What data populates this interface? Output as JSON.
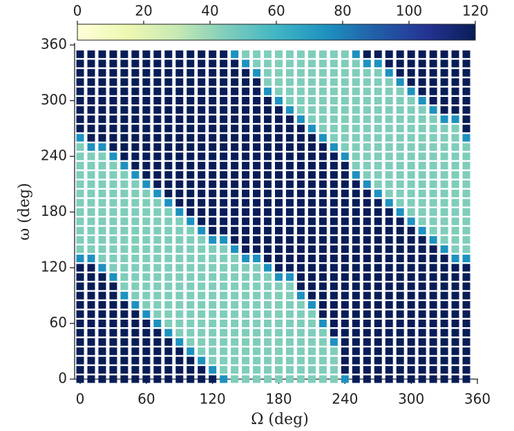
{
  "chart_data": {
    "type": "heatmap",
    "xlabel": "Ω (deg)",
    "ylabel": "ω (deg)",
    "x": [
      0,
      10,
      20,
      30,
      40,
      50,
      60,
      70,
      80,
      90,
      100,
      110,
      120,
      130,
      140,
      150,
      160,
      170,
      180,
      190,
      200,
      210,
      220,
      230,
      240,
      250,
      260,
      270,
      280,
      290,
      300,
      310,
      320,
      330,
      340,
      350
    ],
    "y": [
      0,
      10,
      20,
      30,
      40,
      50,
      60,
      70,
      80,
      90,
      100,
      110,
      120,
      130,
      140,
      150,
      160,
      170,
      180,
      190,
      200,
      210,
      220,
      230,
      240,
      250,
      260,
      270,
      280,
      290,
      300,
      310,
      320,
      330,
      340,
      350
    ],
    "xlim": [
      0,
      360
    ],
    "ylim": [
      0,
      360
    ],
    "xticks": [
      0,
      60,
      120,
      180,
      240,
      300,
      360
    ],
    "yticks": [
      0,
      60,
      120,
      180,
      240,
      300,
      360
    ],
    "zlim": [
      0,
      120
    ],
    "zticks": [
      0,
      20,
      40,
      60,
      80,
      100,
      120
    ],
    "colorscale": [
      "#ffffd9",
      "#edf8b1",
      "#c7e9b4",
      "#7fcdbb",
      "#41b6c4",
      "#1d91c0",
      "#225ea8",
      "#253494",
      "#081d58"
    ],
    "z": [
      [
        120,
        120,
        120,
        120,
        120,
        120,
        120,
        120,
        120,
        120,
        120,
        120,
        120,
        75,
        45,
        45,
        45,
        45,
        45,
        45,
        45,
        45,
        45,
        45,
        75,
        120,
        120,
        120,
        120,
        120,
        120,
        120,
        120,
        120,
        120,
        120
      ],
      [
        120,
        120,
        120,
        120,
        120,
        120,
        120,
        120,
        120,
        120,
        120,
        120,
        75,
        45,
        45,
        45,
        45,
        45,
        45,
        45,
        45,
        45,
        45,
        45,
        120,
        120,
        120,
        120,
        120,
        120,
        120,
        120,
        120,
        120,
        120,
        120
      ],
      [
        120,
        120,
        120,
        120,
        120,
        120,
        120,
        120,
        120,
        120,
        120,
        75,
        45,
        45,
        45,
        45,
        45,
        45,
        45,
        45,
        45,
        45,
        45,
        45,
        120,
        120,
        120,
        120,
        120,
        120,
        120,
        120,
        120,
        120,
        120,
        120
      ],
      [
        120,
        120,
        120,
        120,
        120,
        120,
        120,
        120,
        120,
        120,
        75,
        45,
        45,
        45,
        45,
        45,
        45,
        45,
        45,
        45,
        45,
        45,
        45,
        45,
        120,
        120,
        120,
        120,
        120,
        120,
        120,
        120,
        120,
        120,
        120,
        120
      ],
      [
        120,
        120,
        120,
        120,
        120,
        120,
        120,
        120,
        120,
        75,
        45,
        45,
        45,
        45,
        45,
        45,
        45,
        45,
        45,
        45,
        45,
        45,
        45,
        75,
        120,
        120,
        120,
        120,
        120,
        120,
        120,
        120,
        120,
        120,
        120,
        120
      ],
      [
        120,
        120,
        120,
        120,
        120,
        120,
        120,
        120,
        75,
        45,
        45,
        45,
        45,
        45,
        45,
        45,
        45,
        45,
        45,
        45,
        45,
        45,
        45,
        120,
        120,
        120,
        120,
        120,
        120,
        120,
        120,
        120,
        120,
        120,
        120,
        120
      ],
      [
        120,
        120,
        120,
        120,
        120,
        120,
        120,
        75,
        45,
        45,
        45,
        45,
        45,
        45,
        45,
        45,
        45,
        45,
        45,
        45,
        45,
        45,
        75,
        120,
        120,
        120,
        120,
        120,
        120,
        120,
        120,
        120,
        120,
        120,
        120,
        120
      ],
      [
        120,
        120,
        120,
        120,
        120,
        120,
        75,
        45,
        45,
        45,
        45,
        45,
        45,
        45,
        45,
        45,
        45,
        45,
        45,
        45,
        45,
        45,
        120,
        120,
        120,
        120,
        120,
        120,
        120,
        120,
        120,
        120,
        120,
        120,
        120,
        120
      ],
      [
        120,
        120,
        120,
        120,
        120,
        75,
        45,
        45,
        45,
        45,
        45,
        45,
        45,
        45,
        45,
        45,
        45,
        45,
        45,
        45,
        45,
        75,
        120,
        120,
        120,
        120,
        120,
        120,
        120,
        120,
        120,
        120,
        120,
        120,
        120,
        120
      ],
      [
        120,
        120,
        120,
        120,
        75,
        45,
        45,
        45,
        45,
        45,
        45,
        45,
        45,
        45,
        45,
        45,
        45,
        45,
        45,
        45,
        75,
        120,
        120,
        120,
        120,
        120,
        120,
        120,
        120,
        120,
        120,
        120,
        120,
        120,
        120,
        120
      ],
      [
        120,
        120,
        120,
        120,
        45,
        45,
        45,
        45,
        45,
        45,
        45,
        45,
        45,
        45,
        45,
        45,
        45,
        45,
        45,
        45,
        120,
        120,
        120,
        120,
        120,
        120,
        120,
        120,
        120,
        120,
        120,
        120,
        120,
        120,
        120,
        120
      ],
      [
        120,
        120,
        120,
        75,
        45,
        45,
        45,
        45,
        45,
        45,
        45,
        45,
        45,
        45,
        45,
        45,
        45,
        45,
        75,
        75,
        120,
        120,
        120,
        120,
        120,
        120,
        120,
        120,
        120,
        120,
        120,
        120,
        120,
        120,
        120,
        120
      ],
      [
        120,
        120,
        75,
        45,
        45,
        45,
        45,
        45,
        45,
        45,
        45,
        45,
        45,
        45,
        45,
        45,
        45,
        75,
        120,
        120,
        120,
        120,
        120,
        120,
        120,
        120,
        120,
        120,
        120,
        120,
        120,
        120,
        120,
        120,
        120,
        120
      ],
      [
        75,
        75,
        45,
        45,
        45,
        45,
        45,
        45,
        45,
        45,
        45,
        45,
        45,
        45,
        45,
        75,
        75,
        120,
        120,
        120,
        120,
        120,
        120,
        120,
        120,
        120,
        120,
        120,
        120,
        120,
        120,
        120,
        120,
        120,
        75,
        75
      ],
      [
        45,
        45,
        45,
        45,
        45,
        45,
        45,
        45,
        45,
        45,
        45,
        45,
        45,
        45,
        75,
        120,
        120,
        120,
        120,
        120,
        120,
        120,
        120,
        120,
        120,
        120,
        120,
        120,
        120,
        120,
        120,
        120,
        120,
        75,
        45,
        45
      ],
      [
        45,
        45,
        45,
        45,
        45,
        45,
        45,
        45,
        45,
        45,
        45,
        45,
        75,
        75,
        120,
        120,
        120,
        120,
        120,
        120,
        120,
        120,
        120,
        120,
        120,
        120,
        120,
        120,
        120,
        120,
        120,
        120,
        75,
        45,
        45,
        45
      ],
      [
        45,
        45,
        45,
        45,
        45,
        45,
        45,
        45,
        45,
        45,
        45,
        75,
        120,
        120,
        120,
        120,
        120,
        120,
        120,
        120,
        120,
        120,
        120,
        120,
        120,
        120,
        120,
        120,
        120,
        120,
        120,
        75,
        45,
        45,
        45,
        45
      ],
      [
        45,
        45,
        45,
        45,
        45,
        45,
        45,
        45,
        45,
        45,
        75,
        120,
        120,
        120,
        120,
        120,
        120,
        120,
        120,
        120,
        120,
        120,
        120,
        120,
        120,
        120,
        120,
        120,
        120,
        120,
        75,
        45,
        45,
        45,
        45,
        45
      ],
      [
        45,
        45,
        45,
        45,
        45,
        45,
        45,
        45,
        45,
        75,
        120,
        120,
        120,
        120,
        120,
        120,
        120,
        120,
        120,
        120,
        120,
        120,
        120,
        120,
        120,
        120,
        120,
        120,
        120,
        75,
        45,
        45,
        45,
        45,
        45,
        45
      ],
      [
        45,
        45,
        45,
        45,
        45,
        45,
        45,
        45,
        75,
        120,
        120,
        120,
        120,
        120,
        120,
        120,
        120,
        120,
        120,
        120,
        120,
        120,
        120,
        120,
        120,
        120,
        120,
        120,
        75,
        45,
        45,
        45,
        45,
        45,
        45,
        45
      ],
      [
        45,
        45,
        45,
        45,
        45,
        45,
        45,
        75,
        120,
        120,
        120,
        120,
        120,
        120,
        120,
        120,
        120,
        120,
        120,
        120,
        120,
        120,
        120,
        120,
        120,
        120,
        120,
        75,
        45,
        45,
        45,
        45,
        45,
        45,
        45,
        45
      ],
      [
        45,
        45,
        45,
        45,
        45,
        45,
        75,
        120,
        120,
        120,
        120,
        120,
        120,
        120,
        120,
        120,
        120,
        120,
        120,
        120,
        120,
        120,
        120,
        120,
        120,
        120,
        75,
        45,
        45,
        45,
        45,
        45,
        45,
        45,
        45,
        45
      ],
      [
        45,
        45,
        45,
        45,
        45,
        75,
        120,
        120,
        120,
        120,
        120,
        120,
        120,
        120,
        120,
        120,
        120,
        120,
        120,
        120,
        120,
        120,
        120,
        120,
        120,
        75,
        45,
        45,
        45,
        45,
        45,
        45,
        45,
        45,
        45,
        45
      ],
      [
        45,
        45,
        45,
        45,
        75,
        120,
        120,
        120,
        120,
        120,
        120,
        120,
        120,
        120,
        120,
        120,
        120,
        120,
        120,
        120,
        120,
        120,
        120,
        120,
        120,
        45,
        45,
        45,
        45,
        45,
        45,
        45,
        45,
        45,
        45,
        45
      ],
      [
        45,
        45,
        45,
        75,
        120,
        120,
        120,
        120,
        120,
        120,
        120,
        120,
        120,
        120,
        120,
        120,
        120,
        120,
        120,
        120,
        120,
        120,
        120,
        120,
        75,
        45,
        45,
        45,
        45,
        45,
        45,
        45,
        45,
        45,
        45,
        45
      ],
      [
        45,
        75,
        75,
        120,
        120,
        120,
        120,
        120,
        120,
        120,
        120,
        120,
        120,
        120,
        120,
        120,
        120,
        120,
        120,
        120,
        120,
        120,
        120,
        75,
        45,
        45,
        45,
        45,
        45,
        45,
        45,
        45,
        45,
        45,
        45,
        45
      ],
      [
        75,
        120,
        120,
        120,
        120,
        120,
        120,
        120,
        120,
        120,
        120,
        120,
        120,
        120,
        120,
        120,
        120,
        120,
        120,
        120,
        120,
        120,
        75,
        45,
        45,
        45,
        45,
        45,
        45,
        45,
        45,
        45,
        45,
        45,
        45,
        75
      ],
      [
        120,
        120,
        120,
        120,
        120,
        120,
        120,
        120,
        120,
        120,
        120,
        120,
        120,
        120,
        120,
        120,
        120,
        120,
        120,
        120,
        120,
        75,
        45,
        45,
        45,
        45,
        45,
        45,
        45,
        45,
        45,
        45,
        45,
        45,
        45,
        120
      ],
      [
        120,
        120,
        120,
        120,
        120,
        120,
        120,
        120,
        120,
        120,
        120,
        120,
        120,
        120,
        120,
        120,
        120,
        120,
        120,
        120,
        75,
        45,
        45,
        45,
        45,
        45,
        45,
        45,
        45,
        45,
        45,
        45,
        45,
        75,
        75,
        120
      ],
      [
        120,
        120,
        120,
        120,
        120,
        120,
        120,
        120,
        120,
        120,
        120,
        120,
        120,
        120,
        120,
        120,
        120,
        120,
        120,
        75,
        45,
        45,
        45,
        45,
        45,
        45,
        45,
        45,
        45,
        45,
        45,
        45,
        75,
        120,
        120,
        120
      ],
      [
        120,
        120,
        120,
        120,
        120,
        120,
        120,
        120,
        120,
        120,
        120,
        120,
        120,
        120,
        120,
        120,
        120,
        120,
        75,
        45,
        45,
        45,
        45,
        45,
        45,
        45,
        45,
        45,
        45,
        45,
        45,
        75,
        120,
        120,
        120,
        120
      ],
      [
        120,
        120,
        120,
        120,
        120,
        120,
        120,
        120,
        120,
        120,
        120,
        120,
        120,
        120,
        120,
        120,
        120,
        75,
        45,
        45,
        45,
        45,
        45,
        45,
        45,
        45,
        45,
        45,
        45,
        45,
        75,
        120,
        120,
        120,
        120,
        120
      ],
      [
        120,
        120,
        120,
        120,
        120,
        120,
        120,
        120,
        120,
        120,
        120,
        120,
        120,
        120,
        120,
        120,
        120,
        45,
        45,
        45,
        45,
        45,
        45,
        45,
        45,
        45,
        45,
        45,
        45,
        75,
        120,
        120,
        120,
        120,
        120,
        120
      ],
      [
        120,
        120,
        120,
        120,
        120,
        120,
        120,
        120,
        120,
        120,
        120,
        120,
        120,
        120,
        120,
        120,
        75,
        45,
        45,
        45,
        45,
        45,
        45,
        45,
        45,
        45,
        45,
        45,
        75,
        120,
        120,
        120,
        120,
        120,
        120,
        120
      ],
      [
        120,
        120,
        120,
        120,
        120,
        120,
        120,
        120,
        120,
        120,
        120,
        120,
        120,
        120,
        120,
        75,
        45,
        45,
        45,
        45,
        45,
        45,
        45,
        45,
        45,
        45,
        75,
        75,
        120,
        120,
        120,
        120,
        120,
        120,
        120,
        120
      ],
      [
        120,
        120,
        120,
        120,
        120,
        120,
        120,
        120,
        120,
        120,
        120,
        120,
        120,
        120,
        75,
        45,
        45,
        45,
        45,
        45,
        45,
        45,
        45,
        45,
        45,
        75,
        120,
        120,
        120,
        120,
        120,
        120,
        120,
        120,
        120,
        120
      ]
    ]
  }
}
